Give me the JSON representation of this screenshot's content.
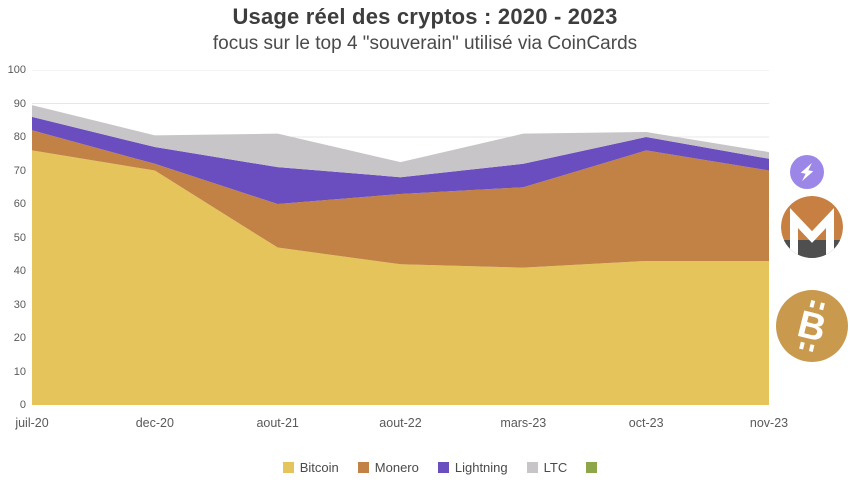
{
  "header": {
    "title": "Usage réel des cryptos : 2020 - 2023",
    "subtitle": "focus sur le top 4 \"souverain\" utilisé via CoinCards"
  },
  "chart_data": {
    "type": "area",
    "stacked": true,
    "title": "Usage réel des cryptos : 2020 - 2023",
    "subtitle": "focus sur le top 4 \"souverain\" utilisé via CoinCards",
    "categories": [
      "juil-20",
      "dec-20",
      "aout-21",
      "aout-22",
      "mars-23",
      "oct-23",
      "nov-23"
    ],
    "series": [
      {
        "name": "Bitcoin",
        "color": "#e6c45c",
        "values": [
          76,
          70,
          47,
          42,
          41,
          43,
          43
        ]
      },
      {
        "name": "Monero",
        "color": "#c28246",
        "values": [
          6,
          2,
          13,
          21,
          24,
          33,
          27
        ]
      },
      {
        "name": "Lightning",
        "color": "#6a4ec0",
        "values": [
          4,
          5,
          11,
          5,
          7,
          4,
          3.5
        ]
      },
      {
        "name": "LTC",
        "color": "#c7c5c7",
        "values": [
          3.5,
          3.5,
          10,
          4.5,
          9,
          1.5,
          2
        ]
      },
      {
        "name": "",
        "color": "#8ea54a",
        "values": [
          0,
          0,
          0,
          0,
          0,
          0,
          0
        ]
      }
    ],
    "ylim": [
      0,
      100
    ],
    "y_ticks": [
      0,
      10,
      20,
      30,
      40,
      50,
      60,
      70,
      80,
      90,
      100
    ],
    "grid": true,
    "grid_color": "#e8e6e8",
    "legend_position": "bottom",
    "axis_text_color": "#5a5a5a"
  },
  "side_icons": {
    "lightning": {
      "name": "lightning-bolt-icon",
      "bg": "#9c86e8",
      "glyph_color": "#ffffff"
    },
    "monero": {
      "name": "monero-icon",
      "orange": "#c87f42",
      "gray": "#4f4f4f",
      "glyph_color": "#ffffff"
    },
    "bitcoin": {
      "name": "bitcoin-icon",
      "bg": "#c9994e",
      "glyph": "B",
      "glyph_color": "#ffffff"
    }
  }
}
